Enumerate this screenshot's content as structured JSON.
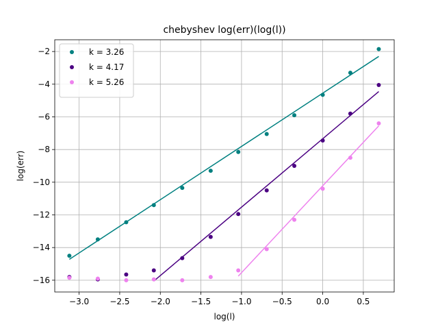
{
  "chart_data": {
    "type": "scatter",
    "title": "chebyshev log(err)(log(l))",
    "xlabel": "log(l)",
    "ylabel": "log(err)",
    "xlim": [
      -3.3,
      0.88
    ],
    "ylim": [
      -16.72,
      -1.28
    ],
    "xticks": [
      -3.0,
      -2.5,
      -2.0,
      -1.5,
      -1.0,
      -0.5,
      0.0,
      0.5
    ],
    "xtick_labels": [
      "−3.0",
      "−2.5",
      "−2.0",
      "−1.5",
      "−1.0",
      "−0.5",
      "0.0",
      "0.5"
    ],
    "yticks": [
      -16,
      -14,
      -12,
      -10,
      -8,
      -6,
      -4,
      -2
    ],
    "ytick_labels": [
      "−16",
      "−14",
      "−12",
      "−10",
      "−8",
      "−6",
      "−4",
      "−2"
    ],
    "grid": true,
    "legend_position": "top-left",
    "series": [
      {
        "name": "k = 3.26",
        "color": "#008080",
        "x": [
          -3.12,
          -2.77,
          -2.42,
          -2.08,
          -1.73,
          -1.38,
          -1.04,
          -0.69,
          -0.35,
          0.0,
          0.34,
          0.69
        ],
        "y": [
          -14.5,
          -13.5,
          -12.45,
          -11.4,
          -10.35,
          -9.3,
          -8.15,
          -7.05,
          -5.9,
          -4.65,
          -3.3,
          -1.85
        ],
        "fit": {
          "x": [
            -3.12,
            0.69
          ],
          "y": [
            -14.72,
            -2.3
          ]
        }
      },
      {
        "name": "k = 4.17",
        "color": "#4b0082",
        "x": [
          -3.12,
          -2.77,
          -2.42,
          -2.08,
          -1.73,
          -1.38,
          -1.04,
          -0.69,
          -0.35,
          0.0,
          0.34,
          0.69
        ],
        "y": [
          -15.8,
          -15.95,
          -15.65,
          -15.4,
          -14.65,
          -13.35,
          -11.95,
          -10.5,
          -9.0,
          -7.45,
          -5.8,
          -4.05
        ],
        "fit": {
          "x": [
            -2.08,
            0.69
          ],
          "y": [
            -16.05,
            -4.45
          ]
        }
      },
      {
        "name": "k = 5.26",
        "color": "#ee82ee",
        "x": [
          -3.12,
          -2.77,
          -2.42,
          -2.08,
          -1.73,
          -1.38,
          -1.04,
          -0.69,
          -0.35,
          0.0,
          0.34,
          0.69
        ],
        "y": [
          -15.85,
          -15.9,
          -16.0,
          -15.95,
          -16.0,
          -15.8,
          -15.4,
          -14.1,
          -12.3,
          -10.4,
          -8.5,
          -6.4
        ],
        "fit": {
          "x": [
            -1.04,
            0.69
          ],
          "y": [
            -15.75,
            -6.55
          ]
        }
      }
    ]
  }
}
